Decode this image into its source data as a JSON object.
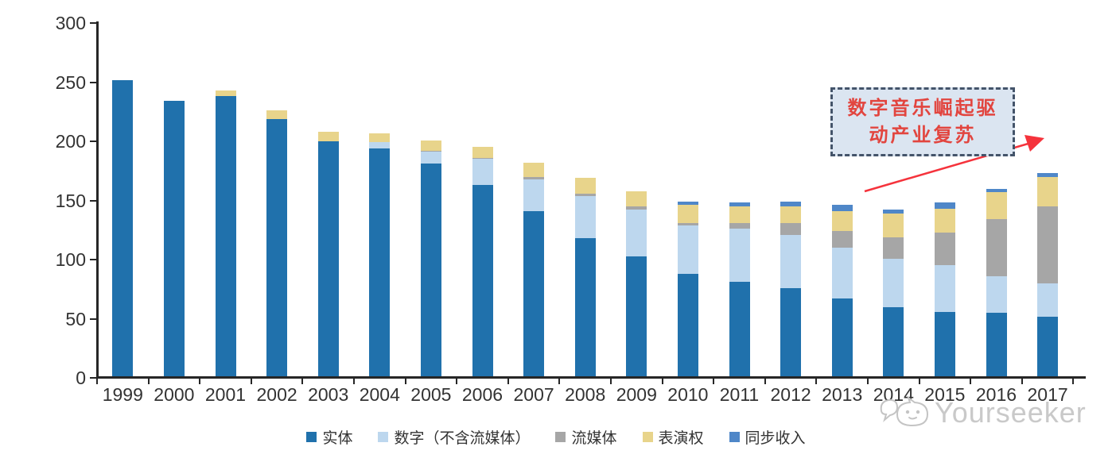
{
  "chart_data": {
    "type": "bar",
    "stacked": true,
    "title": "",
    "xlabel": "",
    "ylabel": "",
    "ylim": [
      0,
      300
    ],
    "yticks": [
      0,
      50,
      100,
      150,
      200,
      250,
      300
    ],
    "grid": false,
    "legend_position": "bottom",
    "categories": [
      "1999",
      "2000",
      "2001",
      "2002",
      "2003",
      "2004",
      "2005",
      "2006",
      "2007",
      "2008",
      "2009",
      "2010",
      "2011",
      "2012",
      "2013",
      "2014",
      "2015",
      "2016",
      "2017"
    ],
    "series": [
      {
        "key": "physical",
        "name": "实体",
        "color": "#2071ac",
        "values": [
          252,
          234,
          238,
          219,
          200,
          194,
          181,
          163,
          141,
          118,
          103,
          88,
          81,
          76,
          67,
          60,
          56,
          55,
          52
        ]
      },
      {
        "key": "digital",
        "name": "数字（不含流媒体）",
        "color": "#bdd7ee",
        "values": [
          0,
          0,
          0,
          0,
          0,
          5,
          10,
          22,
          27,
          36,
          39,
          41,
          45,
          45,
          43,
          41,
          39,
          31,
          28
        ]
      },
      {
        "key": "streaming",
        "name": "流媒体",
        "color": "#a6a6a6",
        "values": [
          0,
          0,
          0,
          0,
          0,
          0,
          1,
          1,
          2,
          2,
          3,
          2,
          5,
          10,
          14,
          18,
          28,
          48,
          65
        ]
      },
      {
        "key": "performance",
        "name": "表演权",
        "color": "#e8d48b",
        "values": [
          0,
          0,
          5,
          7,
          8,
          8,
          9,
          9,
          12,
          13,
          13,
          15,
          14,
          14,
          17,
          20,
          20,
          23,
          25
        ]
      },
      {
        "key": "sync",
        "name": "同步收入",
        "color": "#4f87c8",
        "values": [
          0,
          0,
          0,
          0,
          0,
          0,
          0,
          0,
          0,
          0,
          0,
          3,
          3,
          4,
          5,
          3,
          5,
          3,
          3
        ]
      }
    ]
  },
  "annotation": {
    "line1": "数字音乐崛起驱",
    "line2": "动产业复苏",
    "border_color": "#44546a",
    "fill_color": "#dbe5f1",
    "text_color": "#e2453f",
    "arrow_color": "#f5333c"
  },
  "watermark": {
    "text": "Yourseeker",
    "color": "#c9c9c9"
  }
}
